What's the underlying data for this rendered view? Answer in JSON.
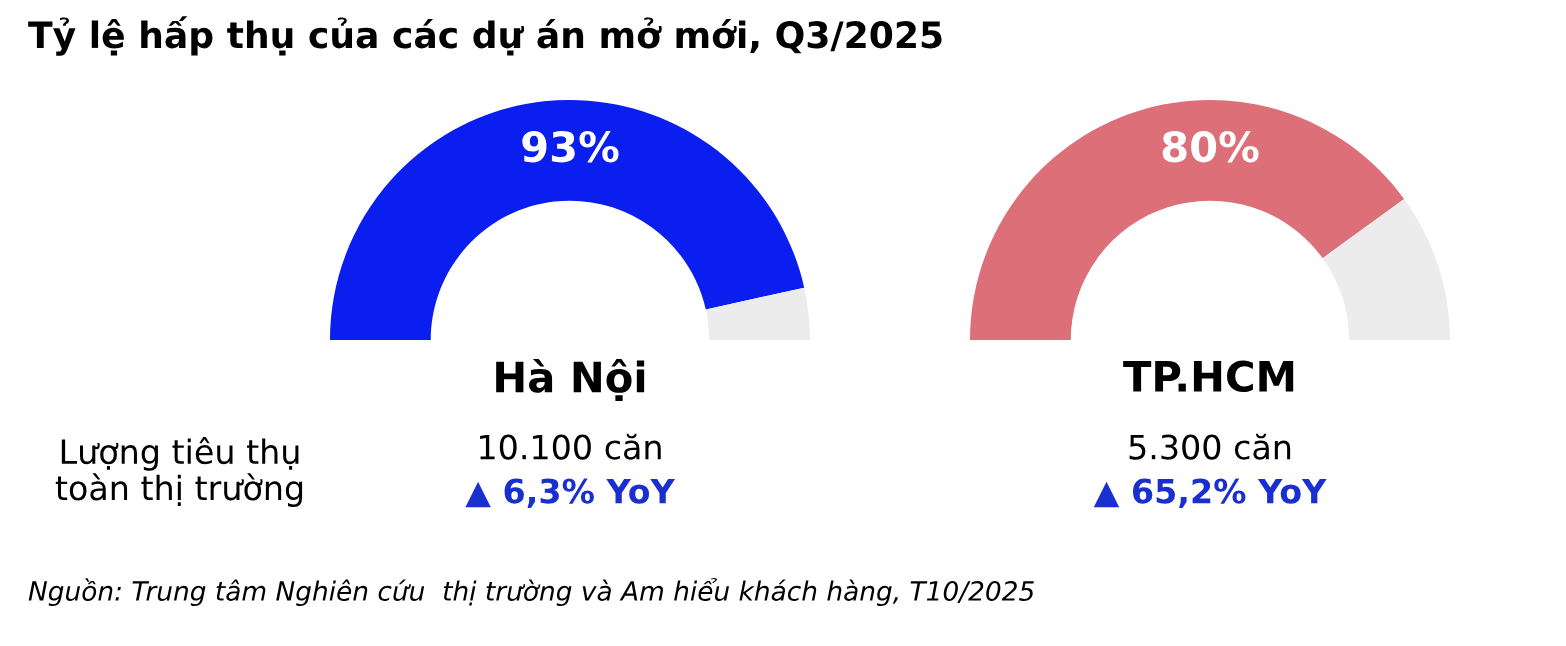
{
  "chart_data": [
    {
      "type": "other",
      "title": "Tỷ lệ hấp thụ của các dự án mở mới, Q3/2025",
      "annotations": [
        "Lượng tiêu thụ\ntoàn thị trường",
        "Nguồn: Trung tâm Nghiên cứu  thị trường và Am hiểu khách hàng, T10/2025"
      ]
    },
    {
      "type": "donut",
      "title": "Hà Nội",
      "categories": [
        null,
        null
      ],
      "values": [
        93,
        7
      ],
      "colors": [
        "#0a1ef0",
        "#ececec"
      ],
      "value_labels": [
        "93%",
        null
      ],
      "annotations": [
        "10.100 căn",
        "▲ 6,3% YoY"
      ]
    },
    {
      "type": "donut",
      "title": "TP.HCM",
      "categories": [
        null,
        null
      ],
      "values": [
        80,
        20
      ],
      "colors": [
        "#dc6f78",
        "#ececec"
      ],
      "value_labels": [
        "80%",
        null
      ],
      "annotations": [
        "5.300 căn",
        "▲ 65,2% YoY"
      ]
    }
  ]
}
